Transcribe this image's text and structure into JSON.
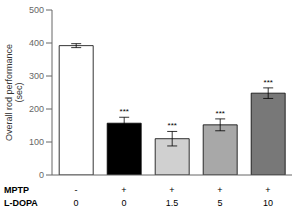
{
  "chart_data": {
    "type": "bar",
    "categories": [
      null,
      null,
      null,
      null,
      null
    ],
    "values": [
      392,
      157,
      110,
      152,
      248
    ],
    "errors": [
      6,
      18,
      22,
      18,
      16
    ],
    "colors": [
      "#ffffff",
      "#000000",
      "#d0d0d0",
      "#a8a8a8",
      "#787878"
    ],
    "y_label": "Overall rod performance\n(sec)",
    "ylim": [
      0,
      500
    ],
    "yticks": [
      0,
      100,
      200,
      300,
      400,
      500
    ],
    "sig_labels": [
      null,
      "***",
      "***",
      "***",
      "***"
    ],
    "x_label_rows": [
      {
        "name": "MPTP",
        "labels": [
          "-",
          "+",
          "+",
          "+",
          "+"
        ]
      },
      {
        "name": "L-DOPA",
        "labels": [
          "0",
          "0",
          "1.5",
          "5",
          "10"
        ]
      }
    ],
    "grid": false
  }
}
